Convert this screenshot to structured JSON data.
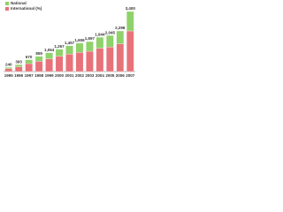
{
  "chart_data": {
    "type": "stacked_bar",
    "categories": [
      "1995",
      "1996",
      "1997",
      "1998",
      "1999",
      "2000",
      "2001",
      "2002",
      "2003",
      "2004",
      "2005",
      "2006",
      "2007"
    ],
    "series": [
      {
        "name": "International (%)",
        "color": "#e8727a",
        "values": [
          160,
          260,
          450,
          580,
          720,
          860,
          990,
          1090,
          1150,
          1320,
          1390,
          1560,
          2300
        ]
      },
      {
        "name": "National",
        "color": "#8fd16a",
        "values": [
          80,
          133,
          220,
          279,
          344,
          407,
          467,
          516,
          547,
          624,
          655,
          738,
          1100
        ]
      }
    ],
    "total_labels": [
      "240",
      "393",
      "670",
      "859",
      "1,064",
      "1,267",
      "1,457",
      "1,606",
      "1,697",
      "1,944",
      "2,045",
      "2,298",
      "3,400"
    ],
    "ylim": [
      0,
      3600
    ],
    "legend": "top-left"
  }
}
